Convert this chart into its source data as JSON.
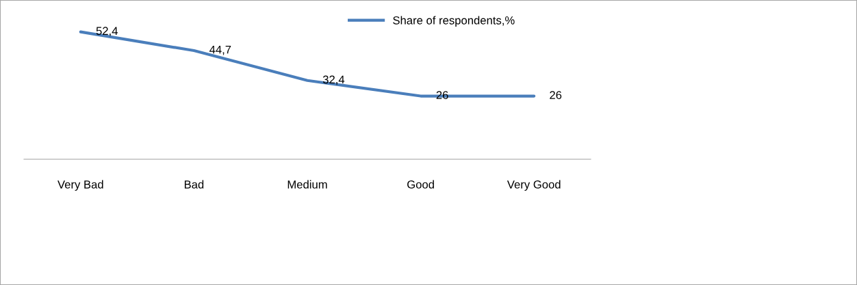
{
  "chart_data": {
    "type": "line",
    "categories": [
      "Very Bad",
      "Bad",
      "Medium",
      "Good",
      "Very Good"
    ],
    "series": [
      {
        "name": "Share of respondents,%",
        "color": "#4a7ebb",
        "values": [
          52.4,
          44.7,
          32.4,
          26,
          26
        ],
        "value_labels": [
          "52,4",
          "44,7",
          "32,4",
          "26",
          "26"
        ]
      }
    ],
    "legend": "top",
    "grid": false,
    "marker": "none",
    "line_style": "solid"
  }
}
